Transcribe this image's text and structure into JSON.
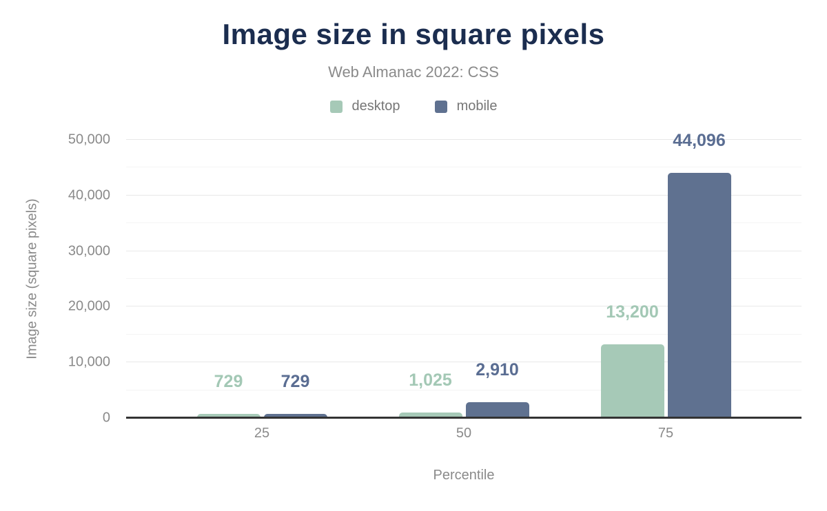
{
  "header": {
    "title": "Image size in square pixels",
    "subtitle": "Web Almanac 2022: CSS"
  },
  "legend": [
    {
      "label": "desktop",
      "color": "#a6c9b7"
    },
    {
      "label": "mobile",
      "color": "#5f7190"
    }
  ],
  "chart_data": {
    "type": "bar",
    "title": "Image size in square pixels",
    "subtitle": "Web Almanac 2022: CSS",
    "categories": [
      "25",
      "50",
      "75"
    ],
    "series": [
      {
        "name": "desktop",
        "color": "#a6c9b7",
        "label_color": "#a3c8b5",
        "values": [
          729,
          1025,
          13200
        ],
        "labels": [
          "729",
          "1,025",
          "13,200"
        ]
      },
      {
        "name": "mobile",
        "color": "#5f7190",
        "label_color": "#5a6d92",
        "values": [
          729,
          2910,
          44096
        ],
        "labels": [
          "729",
          "2,910",
          "44,096"
        ]
      }
    ],
    "xlabel": "Percentile",
    "ylabel": "Image size (square pixels)",
    "ylim": [
      0,
      50000
    ],
    "ytick_step": 10000,
    "grid_step": 5000,
    "yticks": [
      "0",
      "10,000",
      "20,000",
      "30,000",
      "40,000",
      "50,000"
    ],
    "legend_position": "top",
    "grid": true,
    "colors": {
      "title": "#1b2d4f",
      "axis_text": "#8a8a8a",
      "axis_line": "#333333",
      "grid_major": "#e8e8e8",
      "grid_minor": "#f4f4f4"
    }
  }
}
